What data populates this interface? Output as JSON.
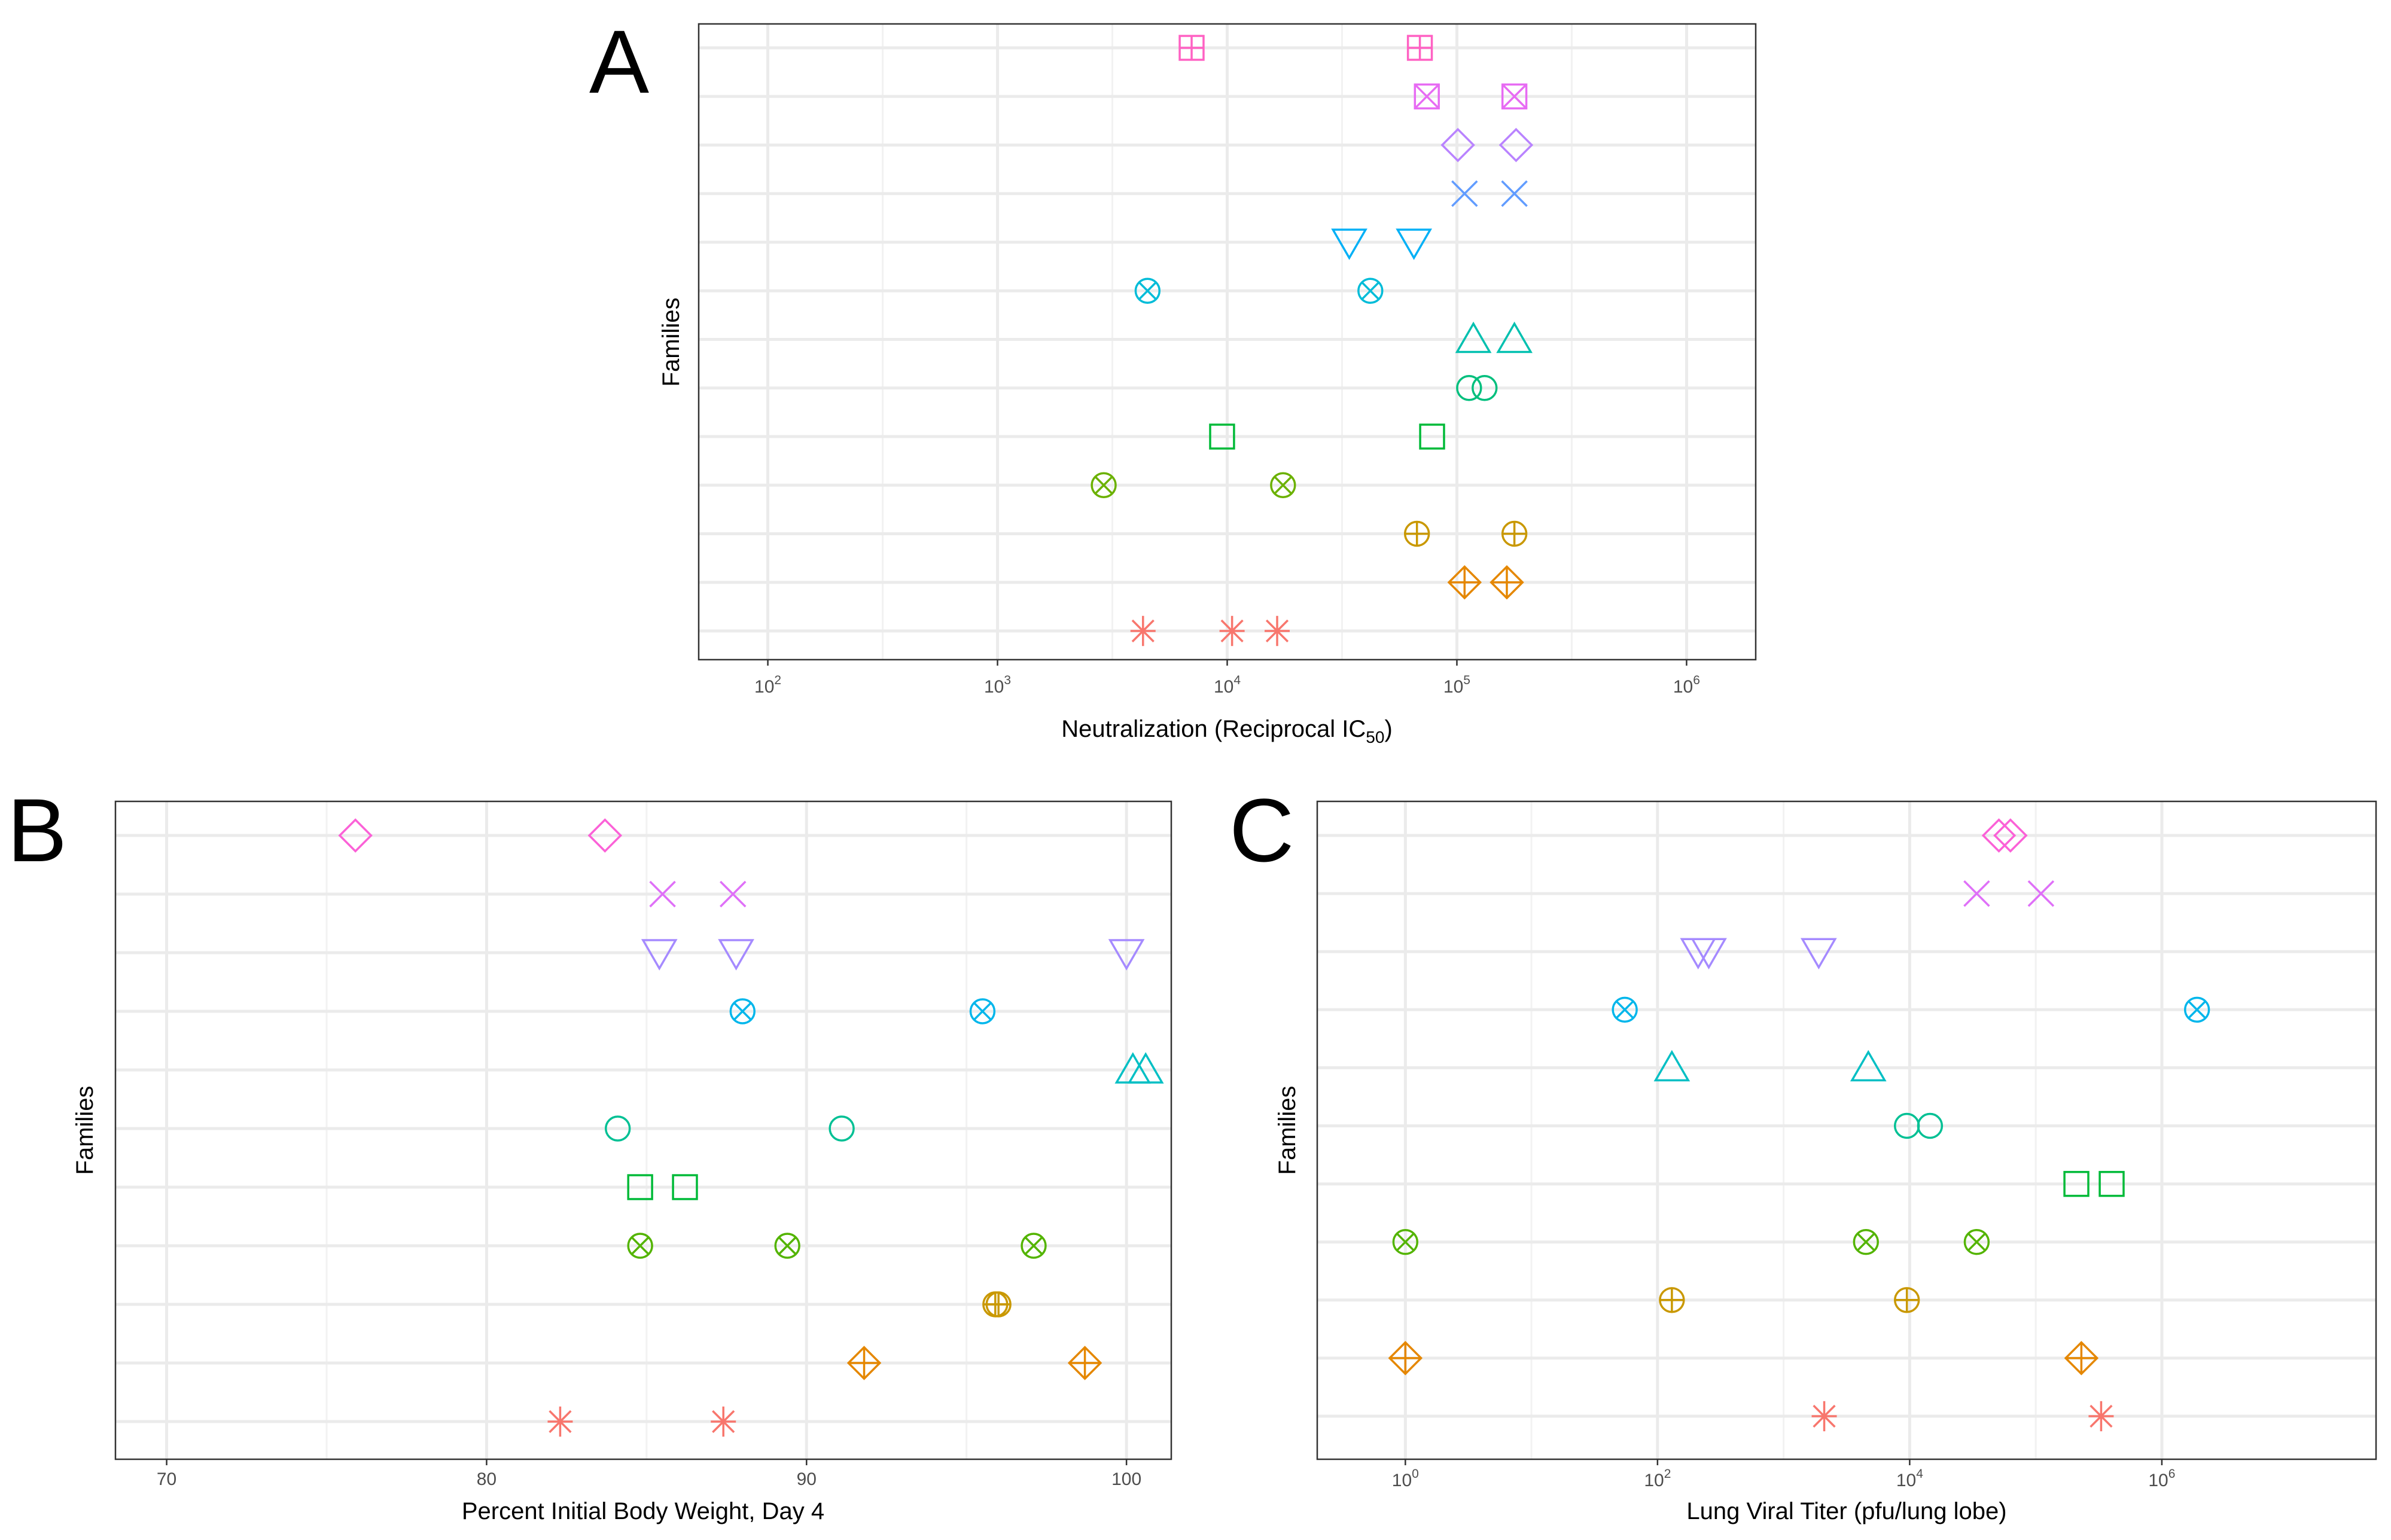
{
  "figure": {
    "panels": [
      "A",
      "B",
      "C"
    ]
  },
  "chart_data": [
    {
      "panel": "A",
      "type": "scatter",
      "title": "",
      "xlabel": "Neutralization (Reciprocal IC50)",
      "xlabel_main": "Neutralization (Reciprocal IC",
      "xlabel_sub": "50",
      "xlabel_end": ")",
      "ylabel": "Families",
      "x_scale": "log10",
      "xlim": [
        50,
        2000000
      ],
      "x_ticks": [
        {
          "value": 100,
          "base": "10",
          "exp": "2"
        },
        {
          "value": 1000,
          "base": "10",
          "exp": "3"
        },
        {
          "value": 10000,
          "base": "10",
          "exp": "4"
        },
        {
          "value": 100000,
          "base": "10",
          "exp": "5"
        },
        {
          "value": 1000000,
          "base": "10",
          "exp": "6"
        }
      ],
      "families": 13,
      "series": [
        {
          "family": 1,
          "shape": "asterisk",
          "color": "#F8766D",
          "values": [
            4300,
            10500,
            16500
          ]
        },
        {
          "family": 2,
          "shape": "diamond-plus",
          "color": "#E58700",
          "values": [
            108000,
            165000
          ]
        },
        {
          "family": 3,
          "shape": "circle-plus",
          "color": "#C99800",
          "values": [
            67000,
            178000
          ]
        },
        {
          "family": 4,
          "shape": "circle-x",
          "color": "#6BB100",
          "values": [
            2900,
            17500
          ]
        },
        {
          "family": 5,
          "shape": "square",
          "color": "#00BA38",
          "values": [
            9500,
            78000
          ]
        },
        {
          "family": 6,
          "shape": "circle",
          "color": "#00BF7D",
          "values": [
            113000,
            132000
          ]
        },
        {
          "family": 7,
          "shape": "triangle-up",
          "color": "#00C0AF",
          "values": [
            118000,
            178000
          ]
        },
        {
          "family": 8,
          "shape": "circle-x",
          "color": "#00BCD8",
          "values": [
            4500,
            42000
          ]
        },
        {
          "family": 9,
          "shape": "triangle-down",
          "color": "#00B0F6",
          "values": [
            34000,
            65000
          ]
        },
        {
          "family": 10,
          "shape": "x",
          "color": "#619CFF",
          "values": [
            108000,
            178000
          ]
        },
        {
          "family": 11,
          "shape": "diamond",
          "color": "#B983FF",
          "values": [
            101000,
            181000
          ]
        },
        {
          "family": 12,
          "shape": "square-x",
          "color": "#E76BF3",
          "values": [
            74000,
            178000
          ]
        },
        {
          "family": 13,
          "shape": "square-plus",
          "color": "#FF61C3",
          "values": [
            7000,
            69000
          ]
        }
      ]
    },
    {
      "panel": "B",
      "type": "scatter",
      "title": "",
      "xlabel": "Percent Initial Body Weight, Day 4",
      "ylabel": "Families",
      "x_scale": "linear",
      "xlim": [
        68.4,
        101.4
      ],
      "x_ticks": [
        {
          "value": 70,
          "label": "70"
        },
        {
          "value": 80,
          "label": "80"
        },
        {
          "value": 90,
          "label": "90"
        },
        {
          "value": 100,
          "label": "100"
        }
      ],
      "families": 11,
      "series": [
        {
          "family": 1,
          "shape": "asterisk",
          "color": "#F8766D",
          "values": [
            82.3,
            87.4
          ]
        },
        {
          "family": 2,
          "shape": "diamond-plus",
          "color": "#E58700",
          "values": [
            91.8,
            98.7
          ]
        },
        {
          "family": 3,
          "shape": "circle-plus",
          "color": "#C99800",
          "values": [
            95.9,
            96.0
          ]
        },
        {
          "family": 4,
          "shape": "circle-x",
          "color": "#53B400",
          "values": [
            84.8,
            89.4,
            97.1
          ]
        },
        {
          "family": 5,
          "shape": "square",
          "color": "#00BA38",
          "values": [
            84.8,
            86.2
          ]
        },
        {
          "family": 6,
          "shape": "circle",
          "color": "#00C094",
          "values": [
            84.1,
            91.1
          ]
        },
        {
          "family": 7,
          "shape": "triangle-up",
          "color": "#00BFC4",
          "values": [
            100.2,
            100.6
          ]
        },
        {
          "family": 8,
          "shape": "circle-x",
          "color": "#00B6EB",
          "values": [
            88.0,
            95.5
          ]
        },
        {
          "family": 9,
          "shape": "triangle-down",
          "color": "#A58AFF",
          "values": [
            85.4,
            87.8,
            100.0
          ]
        },
        {
          "family": 10,
          "shape": "x",
          "color": "#DF70F8",
          "values": [
            85.5,
            87.7
          ]
        },
        {
          "family": 11,
          "shape": "diamond",
          "color": "#FB61D7",
          "values": [
            75.9,
            83.7
          ]
        }
      ]
    },
    {
      "panel": "C",
      "type": "scatter",
      "title": "",
      "xlabel": "Lung Viral Titer (pfu/lung lobe)",
      "ylabel": "Families",
      "x_scale": "log10",
      "xlim": [
        0.2,
        50000000
      ],
      "x_ticks": [
        {
          "value": 1,
          "base": "10",
          "exp": "0"
        },
        {
          "value": 100,
          "base": "10",
          "exp": "2"
        },
        {
          "value": 10000,
          "base": "10",
          "exp": "4"
        },
        {
          "value": 1000000,
          "base": "10",
          "exp": "6"
        }
      ],
      "families": 11,
      "series": [
        {
          "family": 1,
          "shape": "asterisk",
          "color": "#F8766D",
          "values": [
            2100,
            330000
          ]
        },
        {
          "family": 2,
          "shape": "diamond-plus",
          "color": "#E58700",
          "values": [
            1.0,
            230000
          ]
        },
        {
          "family": 3,
          "shape": "circle-plus",
          "color": "#C99800",
          "values": [
            130,
            9500
          ]
        },
        {
          "family": 4,
          "shape": "circle-x",
          "color": "#53B400",
          "values": [
            1.0,
            4500,
            34000
          ]
        },
        {
          "family": 5,
          "shape": "square",
          "color": "#00BA38",
          "values": [
            210000,
            400000
          ]
        },
        {
          "family": 6,
          "shape": "circle",
          "color": "#00C094",
          "values": [
            9500,
            14500
          ]
        },
        {
          "family": 7,
          "shape": "triangle-up",
          "color": "#00BFC4",
          "values": [
            130,
            4700
          ]
        },
        {
          "family": 8,
          "shape": "circle-x",
          "color": "#00B6EB",
          "values": [
            55,
            1900000
          ]
        },
        {
          "family": 9,
          "shape": "triangle-down",
          "color": "#A58AFF",
          "values": [
            210,
            255,
            1900
          ]
        },
        {
          "family": 10,
          "shape": "x",
          "color": "#DF70F8",
          "values": [
            34000,
            110000
          ]
        },
        {
          "family": 11,
          "shape": "diamond",
          "color": "#FB61D7",
          "values": [
            51000,
            63000
          ]
        }
      ]
    }
  ]
}
